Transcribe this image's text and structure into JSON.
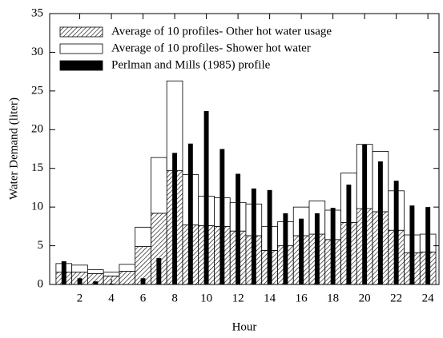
{
  "chart_data": {
    "type": "bar",
    "xlabel": "Hour",
    "ylabel": "Water Demand (liter)",
    "x": [
      1,
      2,
      3,
      4,
      5,
      6,
      7,
      8,
      9,
      10,
      11,
      12,
      13,
      14,
      15,
      16,
      17,
      18,
      19,
      20,
      21,
      22,
      23,
      24
    ],
    "xlim": [
      0.1,
      24.7
    ],
    "xticks": [
      2,
      4,
      6,
      8,
      10,
      12,
      14,
      16,
      18,
      20,
      22,
      24
    ],
    "ylim": [
      0,
      35
    ],
    "yticks": [
      0,
      5,
      10,
      15,
      20,
      25,
      30,
      35
    ],
    "legend": "upper left",
    "series": [
      {
        "name": "Average of 10 profiles- Other hot water usage",
        "color": "#ffffff",
        "hatch": true,
        "stacked": true,
        "values": [
          1.6,
          1.6,
          1.4,
          1.1,
          1.7,
          4.9,
          9.2,
          14.7,
          7.7,
          7.6,
          7.5,
          6.9,
          6.3,
          4.4,
          5.0,
          6.3,
          6.5,
          5.8,
          8.0,
          9.8,
          9.4,
          7.0,
          4.1,
          4.2
        ]
      },
      {
        "name": "Average of 10 profiles- Shower hot water",
        "color": "#ffffff",
        "hatch": false,
        "stacked": true,
        "values": [
          1.1,
          0.9,
          0.5,
          0.5,
          0.9,
          2.5,
          7.2,
          11.6,
          6.5,
          3.8,
          3.7,
          3.7,
          4.1,
          3.1,
          3.1,
          3.7,
          4.3,
          3.8,
          6.4,
          8.3,
          7.8,
          5.1,
          2.3,
          2.3
        ]
      },
      {
        "name": "Perlman and Mills (1985) profile",
        "color": "#000000",
        "hatch": false,
        "stacked": false,
        "values": [
          3.0,
          0.8,
          0.4,
          0.1,
          0.0,
          0.8,
          3.4,
          17.0,
          18.2,
          22.4,
          17.5,
          14.3,
          12.4,
          12.2,
          9.2,
          8.5,
          9.2,
          9.9,
          12.9,
          18.1,
          15.9,
          13.4,
          10.2,
          10.0
        ]
      }
    ]
  }
}
